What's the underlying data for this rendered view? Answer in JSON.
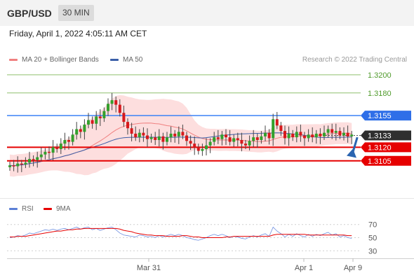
{
  "header": {
    "pair": "GBP/USD",
    "timeframe": "30 MIN"
  },
  "datetime": "Friday, April 1, 2022 4:05:11 AM CET",
  "legend": {
    "ma20": "MA 20 + Bollinger Bands",
    "ma50": "MA 50",
    "rsi": "RSI",
    "ma9": "9MA"
  },
  "credit": "Research © 2022 Trading Central",
  "colors": {
    "up": "#33a02c",
    "down": "#d7191c",
    "band": "#fcd6d6",
    "ma20": "#f08080",
    "ma50": "#3b5fa8",
    "resistance": "#8fc06e",
    "blueLevel": "#3b82f6",
    "support": "#e60000",
    "arrow": "#2a64b0"
  },
  "chart_data": [
    {
      "type": "candlestick",
      "ylim": [
        1.307,
        1.321
      ],
      "x_ticks": [
        "Mar 31",
        "Apr 1",
        "Apr 9"
      ],
      "levels": [
        {
          "value": "1.3200",
          "kind": "resistance"
        },
        {
          "value": "1.3180",
          "kind": "resistance"
        },
        {
          "value": "1.3155",
          "kind": "blue"
        },
        {
          "value": "1.3133",
          "kind": "current"
        },
        {
          "value": "1.3120",
          "kind": "support"
        },
        {
          "value": "1.3105",
          "kind": "support"
        }
      ],
      "arrow": {
        "from": 1.3131,
        "to": 1.3106,
        "direction": "down"
      },
      "close": [
        1.31,
        1.3099,
        1.3102,
        1.3101,
        1.3103,
        1.3107,
        1.3106,
        1.3109,
        1.3112,
        1.3115,
        1.3114,
        1.312,
        1.3118,
        1.3124,
        1.3128,
        1.3126,
        1.3134,
        1.314,
        1.3137,
        1.3145,
        1.315,
        1.3146,
        1.3154,
        1.3152,
        1.316,
        1.3168,
        1.3172,
        1.3167,
        1.3158,
        1.3148,
        1.3141,
        1.3135,
        1.3131,
        1.3136,
        1.3133,
        1.3129,
        1.3131,
        1.3128,
        1.3132,
        1.3126,
        1.3131,
        1.3135,
        1.3132,
        1.3137,
        1.3133,
        1.3127,
        1.3124,
        1.312,
        1.3116,
        1.3118,
        1.3122,
        1.3126,
        1.3131,
        1.3129,
        1.3134,
        1.3131,
        1.3126,
        1.313,
        1.3128,
        1.3124,
        1.3122,
        1.3127,
        1.3131,
        1.3128,
        1.3132,
        1.3136,
        1.313,
        1.3151,
        1.3144,
        1.3138,
        1.313,
        1.3135,
        1.3131,
        1.3137,
        1.3133,
        1.313,
        1.3134,
        1.3131,
        1.3135,
        1.3132,
        1.3136,
        1.314,
        1.3136,
        1.3138,
        1.3133,
        1.3136,
        1.3132,
        1.3134
      ],
      "rsi": [
        50,
        51,
        53,
        52,
        54,
        57,
        56,
        58,
        60,
        62,
        61,
        63,
        61,
        63,
        64,
        62,
        64,
        66,
        63,
        65,
        66,
        62,
        64,
        61,
        63,
        65,
        66,
        62,
        57,
        54,
        53,
        52,
        51,
        54,
        53,
        51,
        52,
        50,
        53,
        51,
        53,
        55,
        53,
        55,
        53,
        50,
        49,
        47,
        46,
        48,
        50,
        53,
        55,
        53,
        55,
        53,
        50,
        52,
        51,
        49,
        48,
        51,
        53,
        51,
        54,
        56,
        52,
        66,
        60,
        56,
        51,
        55,
        52,
        56,
        53,
        51,
        55,
        52,
        55,
        53,
        56,
        58,
        54,
        56,
        51,
        53,
        50,
        49
      ],
      "rsi_ma9": [
        51,
        51,
        52,
        52,
        52,
        53,
        54,
        55,
        56,
        57,
        58,
        59,
        60,
        60,
        61,
        62,
        62,
        63,
        63,
        64,
        64,
        64,
        64,
        64,
        64,
        64,
        64,
        64,
        63,
        61,
        60,
        59,
        57,
        56,
        55,
        54,
        54,
        53,
        53,
        53,
        52,
        52,
        52,
        52,
        53,
        53,
        52,
        51,
        51,
        50,
        50,
        50,
        50,
        50,
        50,
        51,
        51,
        52,
        52,
        52,
        52,
        52,
        52,
        52,
        52,
        52,
        52,
        54,
        55,
        55,
        55,
        55,
        55,
        55,
        55,
        55,
        54,
        54,
        54,
        54,
        54,
        54,
        54,
        54,
        54,
        54,
        53,
        53
      ],
      "rsi_levels": [
        "70",
        "50",
        "30"
      ]
    }
  ]
}
